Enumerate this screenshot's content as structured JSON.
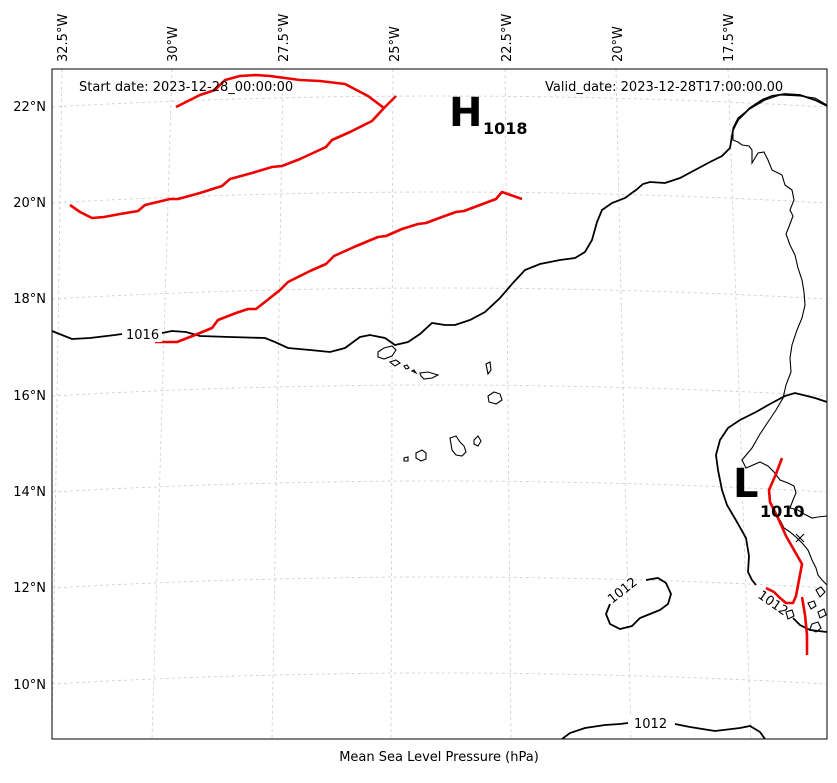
{
  "header": {
    "start_date": "Start date: 2023-12-28_00:00:00",
    "valid_date": "Valid_date: 2023-12-28T17:00:00.00"
  },
  "axes": {
    "xlabel": "Mean Sea Level Pressure (hPa)",
    "lon_ticks": [
      "32.5°W",
      "30°W",
      "27.5°W",
      "25°W",
      "22.5°W",
      "20°W",
      "17.5°W"
    ],
    "lat_ticks": [
      "22°N",
      "20°N",
      "18°N",
      "16°N",
      "14°N",
      "12°N",
      "10°N"
    ]
  },
  "pressure_centers": [
    {
      "letter": "H",
      "value": "1018"
    },
    {
      "letter": "L",
      "value": "1010"
    }
  ],
  "isobar_labels": [
    "1016",
    "1012",
    "1012",
    "1012"
  ],
  "colors": {
    "front": "#ee0000",
    "isobar": "#000000",
    "grid": "#cccccc"
  }
}
